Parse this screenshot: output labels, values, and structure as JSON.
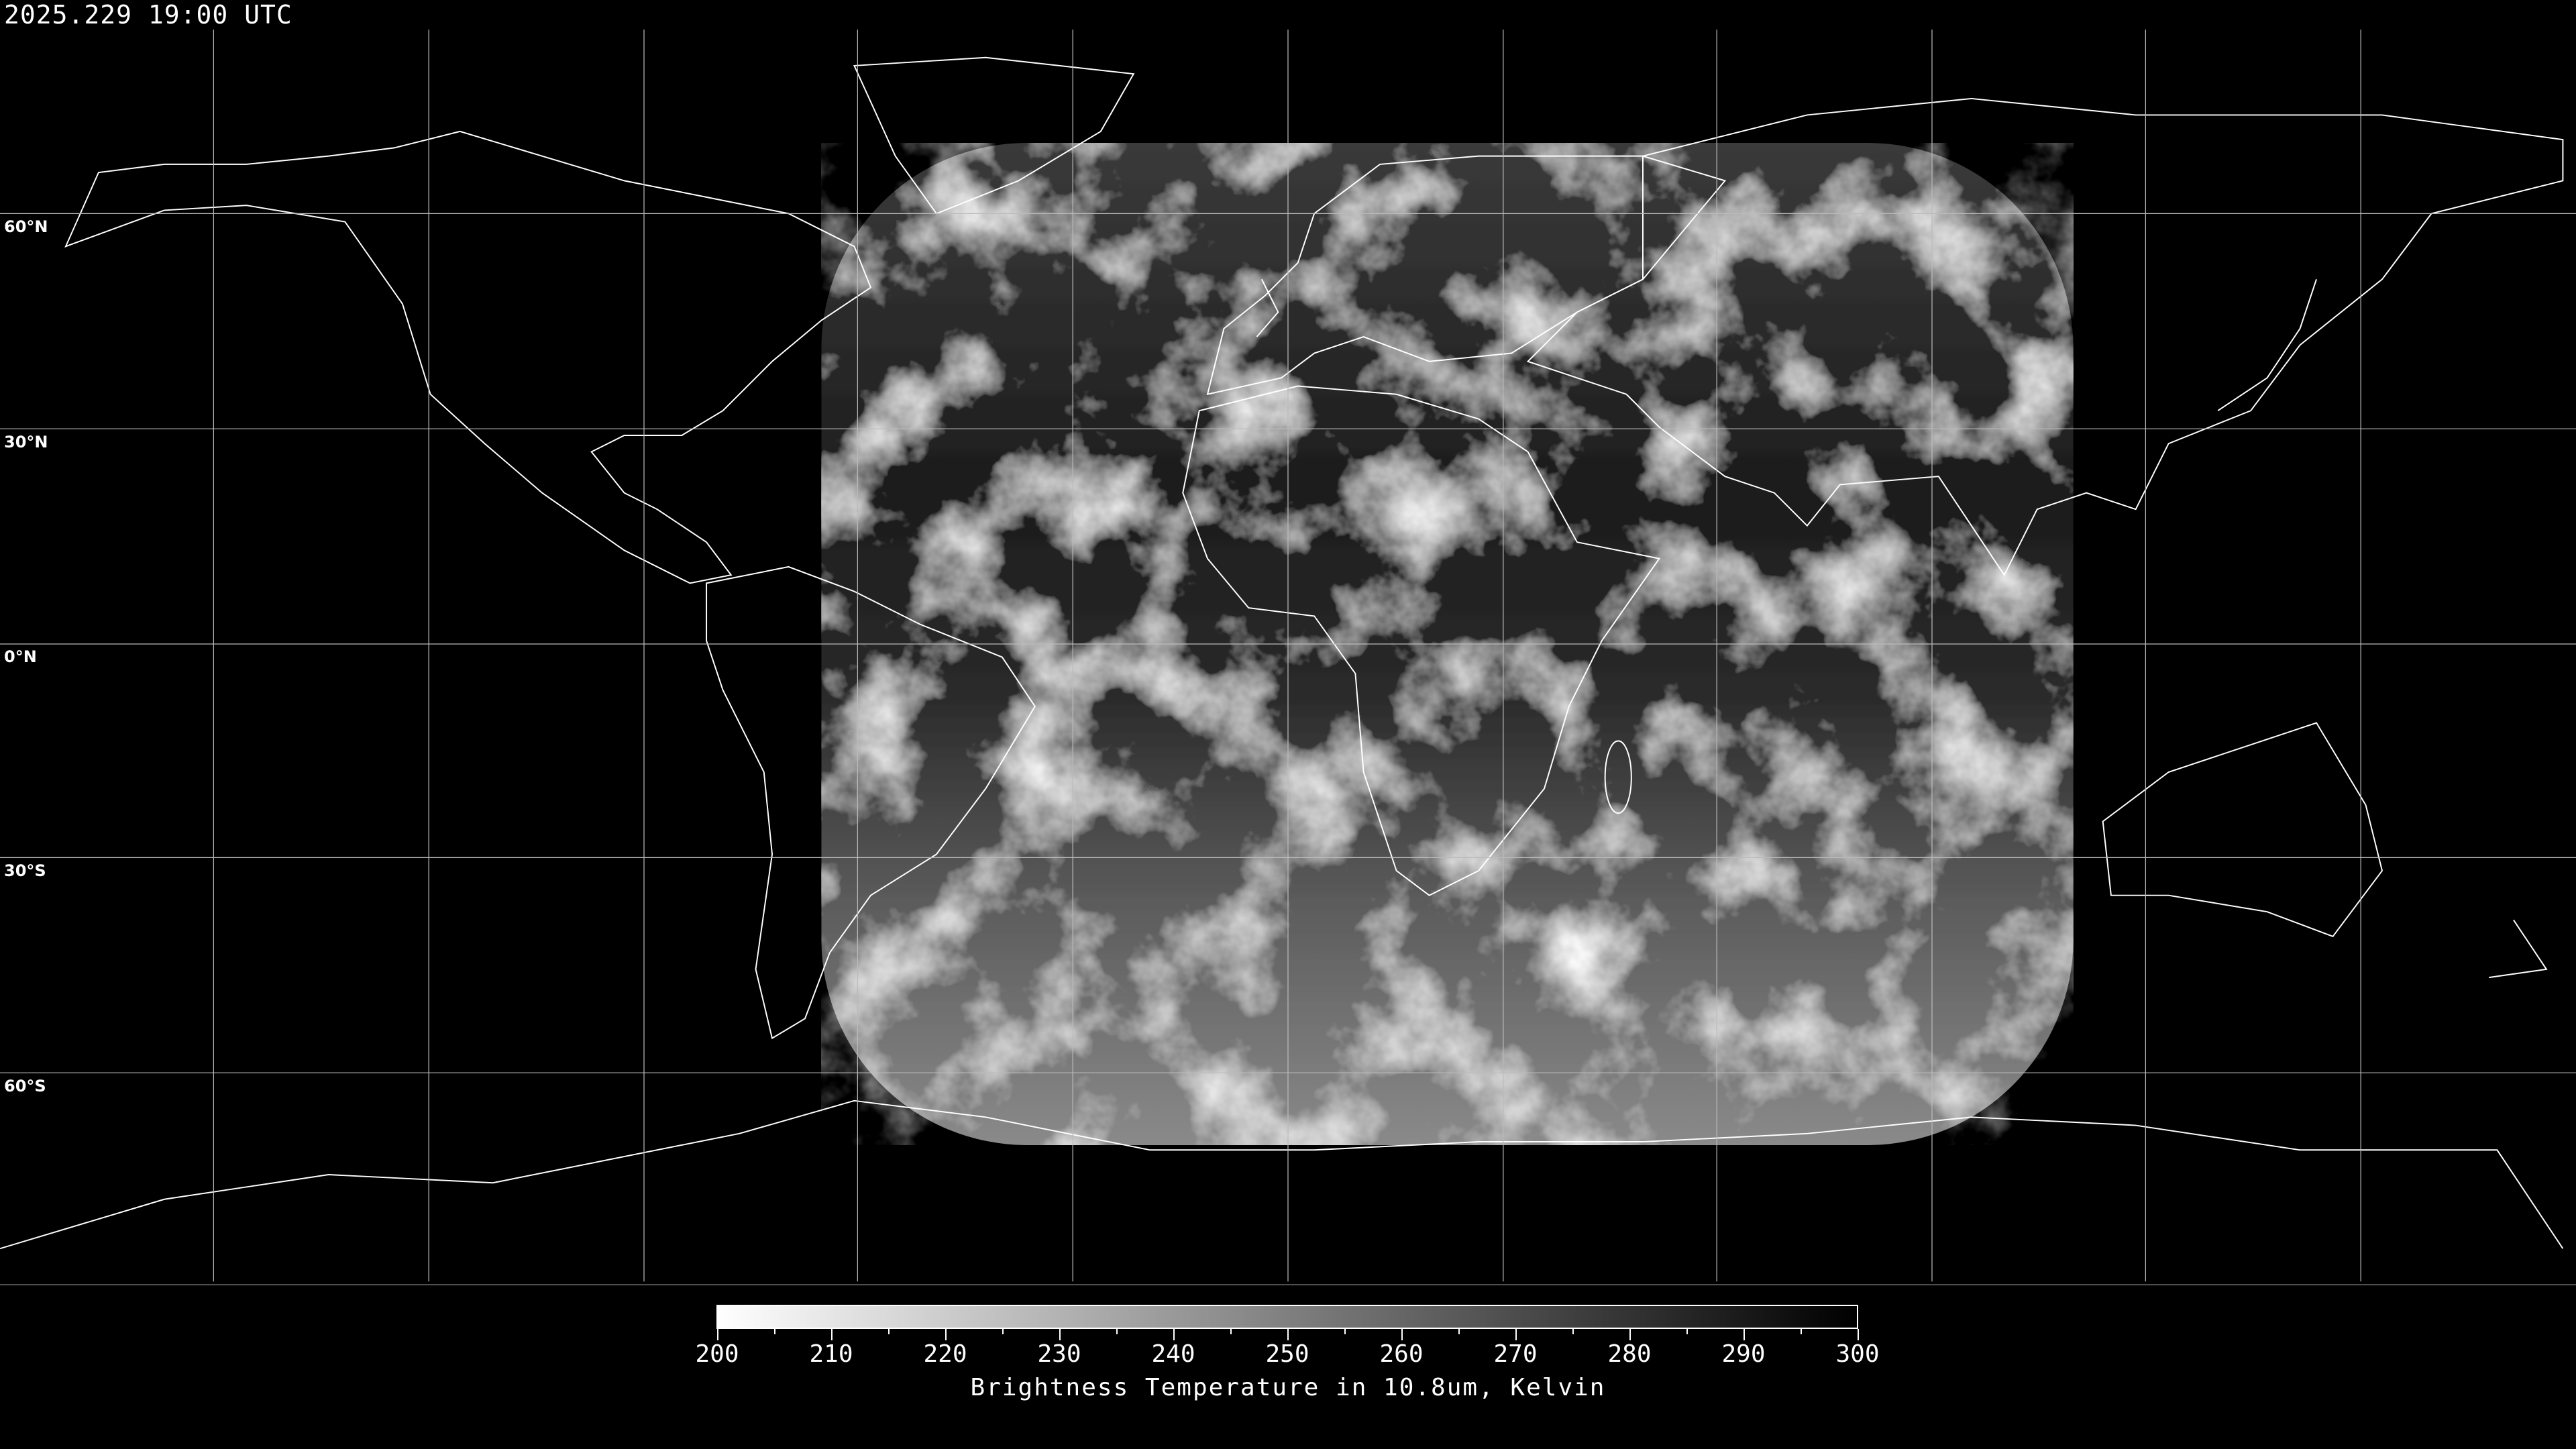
{
  "title": "2025.229 19:00 UTC",
  "projection": "equirectangular",
  "latitude_labels": [
    "60°N",
    "30°N",
    "0°N",
    "30°S",
    "60°S"
  ],
  "colorbar": {
    "min": 200,
    "max": 300,
    "ticks": [
      "200",
      "210",
      "220",
      "230",
      "240",
      "250",
      "260",
      "270",
      "280",
      "290",
      "300"
    ],
    "colormap": "grayscale (white=200, black=300)",
    "label": "Brightness Temperature in 10.8um, Kelvin"
  },
  "colors": {
    "background": "#000000",
    "coastline": "#ffffff",
    "grid": "#bbbbbb"
  }
}
